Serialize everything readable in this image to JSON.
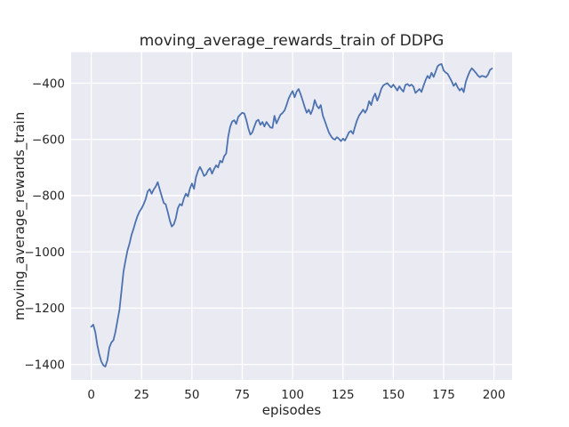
{
  "figure": {
    "background_color": "#ffffff"
  },
  "chart_data": {
    "type": "line",
    "title": "moving_average_rewards_train of DDPG",
    "xlabel": "episodes",
    "ylabel": "moving_average_rewards_train",
    "x_ticks": [
      0,
      25,
      50,
      75,
      100,
      125,
      150,
      175,
      200
    ],
    "y_ticks": [
      -400,
      -600,
      -800,
      -1000,
      -1200,
      -1400
    ],
    "xlim": [
      -10,
      209
    ],
    "ylim": [
      -1455,
      -290
    ],
    "grid": true,
    "legend": "none",
    "style": {
      "axes_bg": "#eaeaf2",
      "grid_color": "#ffffff",
      "line_color": "#4c72b0",
      "text_color": "#262626"
    },
    "series": [
      {
        "name": "moving_average_rewards_train",
        "x_is_episode_index": true,
        "values": [
          -1266,
          -1259,
          -1285,
          -1330,
          -1365,
          -1390,
          -1403,
          -1408,
          -1385,
          -1340,
          -1322,
          -1314,
          -1285,
          -1245,
          -1205,
          -1140,
          -1070,
          -1030,
          -995,
          -970,
          -940,
          -918,
          -893,
          -872,
          -856,
          -845,
          -831,
          -813,
          -785,
          -777,
          -793,
          -778,
          -768,
          -752,
          -778,
          -802,
          -826,
          -831,
          -858,
          -888,
          -910,
          -902,
          -880,
          -845,
          -830,
          -835,
          -810,
          -793,
          -803,
          -775,
          -757,
          -776,
          -735,
          -712,
          -698,
          -712,
          -730,
          -725,
          -710,
          -702,
          -722,
          -705,
          -692,
          -700,
          -676,
          -682,
          -660,
          -650,
          -590,
          -555,
          -536,
          -532,
          -545,
          -520,
          -512,
          -505,
          -508,
          -530,
          -560,
          -583,
          -575,
          -554,
          -535,
          -530,
          -548,
          -538,
          -554,
          -538,
          -548,
          -558,
          -559,
          -516,
          -543,
          -527,
          -512,
          -506,
          -497,
          -478,
          -455,
          -440,
          -428,
          -450,
          -430,
          -421,
          -440,
          -462,
          -485,
          -505,
          -494,
          -510,
          -492,
          -460,
          -480,
          -490,
          -478,
          -515,
          -535,
          -555,
          -575,
          -588,
          -597,
          -601,
          -592,
          -598,
          -606,
          -597,
          -604,
          -590,
          -575,
          -570,
          -580,
          -555,
          -532,
          -515,
          -505,
          -494,
          -505,
          -492,
          -464,
          -478,
          -452,
          -437,
          -462,
          -445,
          -421,
          -408,
          -404,
          -400,
          -408,
          -415,
          -405,
          -415,
          -426,
          -411,
          -422,
          -430,
          -406,
          -403,
          -410,
          -405,
          -412,
          -435,
          -428,
          -421,
          -431,
          -410,
          -390,
          -374,
          -383,
          -363,
          -378,
          -360,
          -340,
          -334,
          -332,
          -355,
          -362,
          -367,
          -380,
          -394,
          -410,
          -400,
          -415,
          -426,
          -418,
          -432,
          -396,
          -375,
          -358,
          -347,
          -355,
          -363,
          -373,
          -379,
          -374,
          -376,
          -379,
          -370,
          -353,
          -348
        ]
      }
    ]
  }
}
